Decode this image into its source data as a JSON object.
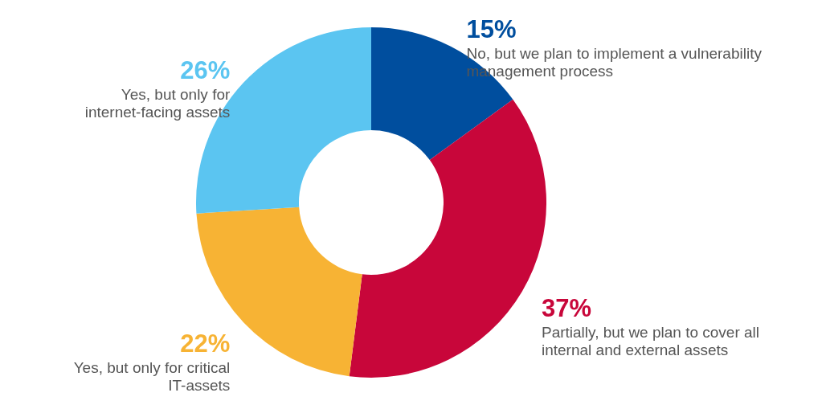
{
  "chart_data": {
    "type": "donut",
    "categories": [
      "No, but we plan to implement a vulnerability\nmanagement process",
      "Partially, but we plan to cover all\ninternal and external assets",
      "Yes, but only for critical\nIT-assets",
      "Yes, but only for\ninternet-facing assets"
    ],
    "values": [
      15,
      37,
      22,
      26
    ],
    "colors": [
      "#004e9e",
      "#c8063a",
      "#f7b334",
      "#5bc5f1"
    ],
    "value_labels": [
      "15%",
      "37%",
      "22%",
      "26%"
    ]
  }
}
